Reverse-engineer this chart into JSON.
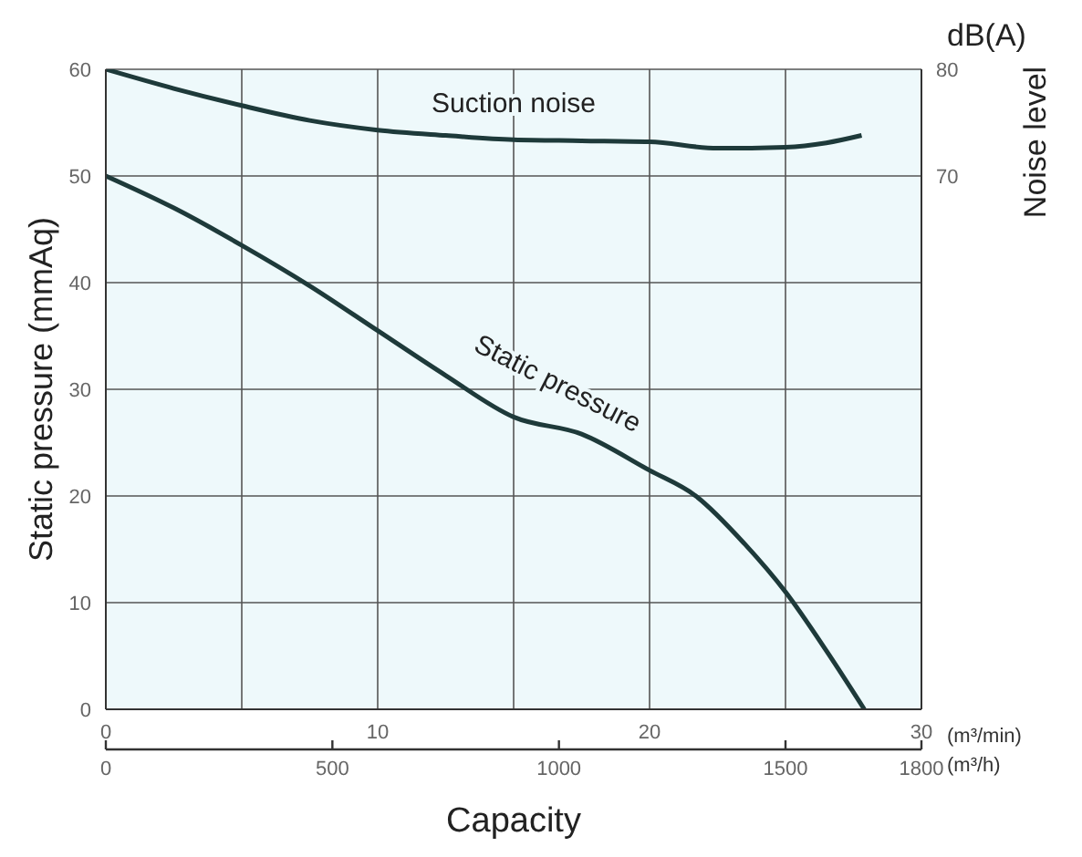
{
  "chart_data": {
    "type": "line",
    "xlabel": "Capacity",
    "ylabel": "Static pressure (mmAq)",
    "y2label": "Noise level",
    "annotations": [
      "(m³/min)",
      "(m³/h)",
      "dB(A)"
    ],
    "xlim": [
      0,
      30
    ],
    "xticks": [
      0,
      {
        "value": 5,
        "label": null
      },
      10,
      {
        "value": 15,
        "label": null
      },
      20,
      {
        "value": 25,
        "label": null
      },
      30
    ],
    "x2lim": [
      0,
      1800
    ],
    "x2ticks": [
      0,
      500,
      1000,
      1500,
      1800
    ],
    "ylim": [
      0,
      60
    ],
    "yticks": [
      0,
      10,
      20,
      30,
      40,
      50,
      60
    ],
    "y2lim": [
      20,
      80
    ],
    "y2ticks": [
      70,
      80
    ],
    "grid": true,
    "marker": "none",
    "line_style": "solid",
    "series": [
      {
        "name": "Suction noise",
        "color": "#1e3a3a",
        "axis": "y2",
        "x": [
          0,
          2.5,
          5,
          7.5,
          10,
          12.5,
          15,
          17.5,
          20,
          22.5,
          25,
          26.5,
          27.8
        ],
        "values": [
          80,
          78.2,
          76.6,
          75.2,
          74.3,
          73.8,
          73.4,
          73.3,
          73.2,
          72.6,
          72.7,
          73.1,
          73.8
        ]
      },
      {
        "name": "Static pressure",
        "color": "#1e3a3a",
        "x": [
          0,
          2.5,
          5,
          7.5,
          10,
          12.5,
          15,
          17.5,
          20,
          21.7,
          23.5,
          25,
          26.5,
          27.9
        ],
        "values": [
          50,
          47,
          43.5,
          39.7,
          35.5,
          31.3,
          27.4,
          25.8,
          22.4,
          20,
          15.5,
          11,
          5.5,
          0
        ]
      }
    ]
  }
}
